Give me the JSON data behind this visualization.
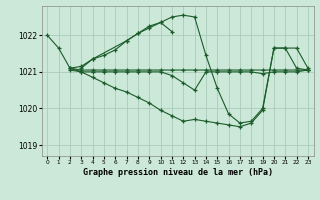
{
  "background_color": "#cce8d8",
  "grid_color": "#aaccbb",
  "line_color": "#1a5c2a",
  "title": "Graphe pression niveau de la mer (hPa)",
  "ylim": [
    1018.7,
    1022.8
  ],
  "xlim": [
    -0.5,
    23.5
  ],
  "yticks": [
    1019,
    1020,
    1021,
    1022
  ],
  "xticks": [
    0,
    1,
    2,
    3,
    4,
    5,
    6,
    7,
    8,
    9,
    10,
    11,
    12,
    13,
    14,
    15,
    16,
    17,
    18,
    19,
    20,
    21,
    22,
    23
  ],
  "series": [
    {
      "x": [
        0,
        1,
        2,
        3,
        4,
        5,
        6,
        7,
        8,
        9,
        10,
        11
      ],
      "y": [
        1022.0,
        1021.65,
        1021.1,
        1021.15,
        1021.35,
        1021.45,
        1021.6,
        1021.85,
        1022.05,
        1022.25,
        1022.35,
        1022.1
      ]
    },
    {
      "x": [
        2,
        3,
        4,
        5,
        6,
        7,
        8,
        9,
        10,
        11,
        12,
        13,
        14,
        15,
        16,
        17,
        18,
        19,
        20,
        21,
        22,
        23
      ],
      "y": [
        1021.1,
        1021.05,
        1021.05,
        1021.05,
        1021.05,
        1021.05,
        1021.05,
        1021.05,
        1021.05,
        1021.05,
        1021.05,
        1021.05,
        1021.05,
        1021.05,
        1021.05,
        1021.05,
        1021.05,
        1021.05,
        1021.05,
        1021.05,
        1021.05,
        1021.05
      ]
    },
    {
      "x": [
        2,
        3,
        4,
        5,
        6,
        7,
        8,
        9,
        10,
        11,
        12,
        13,
        14,
        15,
        16,
        17,
        18,
        19,
        20,
        21,
        22,
        23
      ],
      "y": [
        1021.05,
        1021.0,
        1021.0,
        1021.0,
        1021.0,
        1021.0,
        1021.0,
        1021.0,
        1021.0,
        1020.9,
        1020.7,
        1020.5,
        1021.0,
        1021.0,
        1021.0,
        1021.0,
        1021.0,
        1020.95,
        1021.0,
        1021.0,
        1021.0,
        1021.05
      ]
    },
    {
      "x": [
        2,
        3,
        4,
        5,
        6,
        7,
        8,
        9,
        10,
        11,
        12,
        13,
        14,
        15,
        16,
        17,
        18,
        19,
        20,
        21,
        22,
        23
      ],
      "y": [
        1021.1,
        1021.0,
        1020.85,
        1020.7,
        1020.55,
        1020.45,
        1020.3,
        1020.15,
        1019.95,
        1019.8,
        1019.65,
        1019.7,
        1019.65,
        1019.6,
        1019.55,
        1019.5,
        1019.6,
        1019.95,
        1021.65,
        1021.65,
        1021.1,
        1021.05
      ]
    },
    {
      "x": [
        3,
        4,
        7,
        8,
        9,
        10,
        11,
        12,
        13,
        14,
        15,
        16,
        17,
        18,
        19,
        20,
        21,
        22,
        23
      ],
      "y": [
        1021.1,
        1021.35,
        1021.85,
        1022.05,
        1022.2,
        1022.35,
        1022.5,
        1022.55,
        1022.5,
        1021.45,
        1020.55,
        1019.85,
        1019.6,
        1019.65,
        1020.0,
        1021.65,
        1021.65,
        1021.65,
        1021.1
      ]
    }
  ]
}
